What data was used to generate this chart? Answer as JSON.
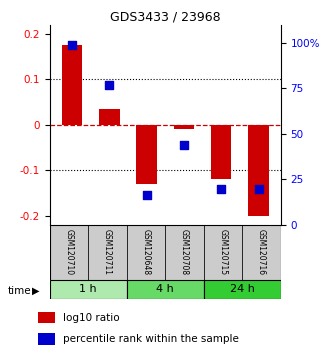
{
  "title": "GDS3433 / 23968",
  "samples": [
    "GSM120710",
    "GSM120711",
    "GSM120648",
    "GSM120708",
    "GSM120715",
    "GSM120716"
  ],
  "log10_ratio": [
    0.175,
    0.035,
    -0.13,
    -0.01,
    -0.12,
    -0.2
  ],
  "percentile_rank": [
    0.9,
    0.7,
    0.15,
    0.4,
    0.18,
    0.18
  ],
  "groups": [
    {
      "label": "1 h",
      "indices": [
        0,
        1
      ],
      "color": "#aeeaae"
    },
    {
      "label": "4 h",
      "indices": [
        2,
        3
      ],
      "color": "#66d966"
    },
    {
      "label": "24 h",
      "indices": [
        4,
        5
      ],
      "color": "#33cc33"
    }
  ],
  "ylim_left": [
    -0.22,
    0.22
  ],
  "ylim_right": [
    0,
    110
  ],
  "yticks_left": [
    -0.2,
    -0.1,
    0.0,
    0.1,
    0.2
  ],
  "yticks_right": [
    0,
    25,
    50,
    75,
    100
  ],
  "ytick_labels_right": [
    "0",
    "25",
    "50",
    "75",
    "100%"
  ],
  "bar_color": "#cc0000",
  "dot_color": "#0000cc",
  "zero_line_color": "#cc0000",
  "grid_color": "#000000",
  "bar_width": 0.55,
  "dot_size": 28,
  "sample_box_color": "#cccccc",
  "legend_red_label": "log10 ratio",
  "legend_blue_label": "percentile rank within the sample",
  "time_label": "time",
  "fig_bg": "#ffffff"
}
